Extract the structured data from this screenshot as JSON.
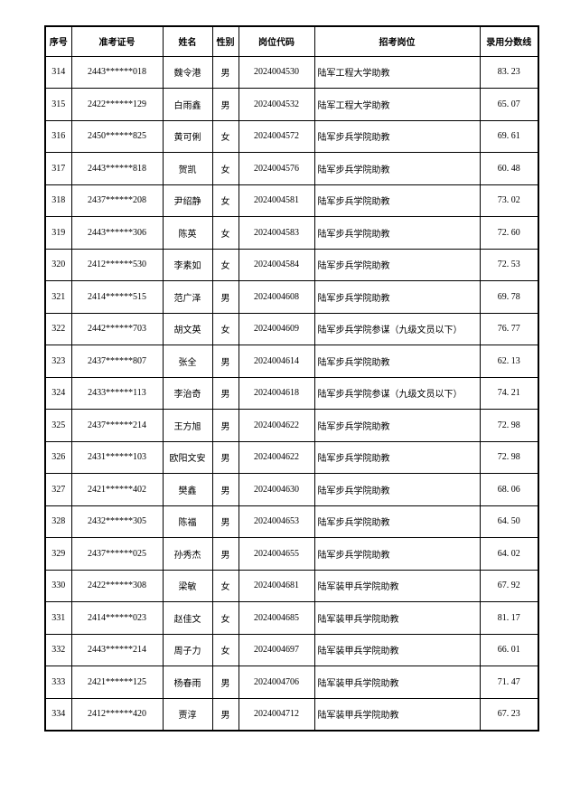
{
  "page": {
    "background_color": "#ffffff",
    "border_color": "#000000",
    "text_color": "#000000"
  },
  "table": {
    "headers": [
      "序号",
      "准考证号",
      "姓名",
      "性别",
      "岗位代码",
      "招考岗位",
      "录用分数线"
    ],
    "rows": [
      [
        "314",
        "2443******018",
        "魏令港",
        "男",
        "2024004530",
        "陆军工程大学助教",
        "83. 23"
      ],
      [
        "315",
        "2422******129",
        "白雨鑫",
        "男",
        "2024004532",
        "陆军工程大学助教",
        "65. 07"
      ],
      [
        "316",
        "2450******825",
        "黄可俐",
        "女",
        "2024004572",
        "陆军步兵学院助教",
        "69. 61"
      ],
      [
        "317",
        "2443******818",
        "贺凯",
        "女",
        "2024004576",
        "陆军步兵学院助教",
        "60. 48"
      ],
      [
        "318",
        "2437******208",
        "尹绍静",
        "女",
        "2024004581",
        "陆军步兵学院助教",
        "73. 02"
      ],
      [
        "319",
        "2443******306",
        "陈英",
        "女",
        "2024004583",
        "陆军步兵学院助教",
        "72. 60"
      ],
      [
        "320",
        "2412******530",
        "李素如",
        "女",
        "2024004584",
        "陆军步兵学院助教",
        "72. 53"
      ],
      [
        "321",
        "2414******515",
        "范广泽",
        "男",
        "2024004608",
        "陆军步兵学院助教",
        "69. 78"
      ],
      [
        "322",
        "2442******703",
        "胡文英",
        "女",
        "2024004609",
        "陆军步兵学院参谋（九级文员以下）",
        "76. 77"
      ],
      [
        "323",
        "2437******807",
        "张全",
        "男",
        "2024004614",
        "陆军步兵学院助教",
        "62. 13"
      ],
      [
        "324",
        "2433******113",
        "李治奇",
        "男",
        "2024004618",
        "陆军步兵学院参谋（九级文员以下）",
        "74. 21"
      ],
      [
        "325",
        "2437******214",
        "王方旭",
        "男",
        "2024004622",
        "陆军步兵学院助教",
        "72. 98"
      ],
      [
        "326",
        "2431******103",
        "欧阳文安",
        "男",
        "2024004622",
        "陆军步兵学院助教",
        "72. 98"
      ],
      [
        "327",
        "2421******402",
        "樊鑫",
        "男",
        "2024004630",
        "陆军步兵学院助教",
        "68. 06"
      ],
      [
        "328",
        "2432******305",
        "陈福",
        "男",
        "2024004653",
        "陆军步兵学院助教",
        "64. 50"
      ],
      [
        "329",
        "2437******025",
        "孙秀杰",
        "男",
        "2024004655",
        "陆军步兵学院助教",
        "64. 02"
      ],
      [
        "330",
        "2422******308",
        "梁敏",
        "女",
        "2024004681",
        "陆军装甲兵学院助教",
        "67. 92"
      ],
      [
        "331",
        "2414******023",
        "赵佳文",
        "女",
        "2024004685",
        "陆军装甲兵学院助教",
        "81. 17"
      ],
      [
        "332",
        "2443******214",
        "周子力",
        "女",
        "2024004697",
        "陆军装甲兵学院助教",
        "66. 01"
      ],
      [
        "333",
        "2421******125",
        "杨春雨",
        "男",
        "2024004706",
        "陆军装甲兵学院助教",
        "71. 47"
      ],
      [
        "334",
        "2412******420",
        "贾淳",
        "男",
        "2024004712",
        "陆军装甲兵学院助教",
        "67. 23"
      ]
    ]
  }
}
